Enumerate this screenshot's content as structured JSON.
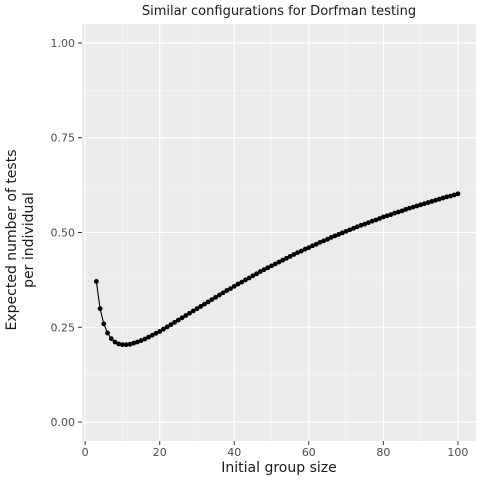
{
  "chart_data": {
    "type": "line",
    "title": "Similar configurations for Dorfman testing",
    "xlabel": "Initial group size",
    "ylabel": [
      "Expected number of tests",
      "per individual"
    ],
    "xlim": [
      -0.85,
      104.85
    ],
    "ylim": [
      -0.05,
      1.05
    ],
    "xticks": [
      0,
      20,
      40,
      60,
      80,
      100
    ],
    "yticks": [
      0.0,
      0.25,
      0.5,
      0.75,
      1.0
    ],
    "ytick_labels": [
      "0.00",
      "0.25",
      "0.50",
      "0.75",
      "1.00"
    ],
    "grid": true,
    "background": "#ebebeb",
    "grid_major_color": "#ffffff",
    "series_color": "#000000",
    "series": [
      {
        "x": [
          3,
          4,
          5,
          6,
          7,
          8,
          9,
          10,
          11,
          12,
          13,
          14,
          15,
          16,
          17,
          18,
          19,
          20,
          21,
          22,
          23,
          24,
          25,
          26,
          27,
          28,
          29,
          30,
          31,
          32,
          33,
          34,
          35,
          36,
          37,
          38,
          39,
          40,
          41,
          42,
          43,
          44,
          45,
          46,
          47,
          48,
          49,
          50,
          51,
          52,
          53,
          54,
          55,
          56,
          57,
          58,
          59,
          60,
          61,
          62,
          63,
          64,
          65,
          66,
          67,
          68,
          69,
          70,
          71,
          72,
          73,
          74,
          75,
          76,
          77,
          78,
          79,
          80,
          81,
          82,
          83,
          84,
          85,
          86,
          87,
          88,
          89,
          90,
          91,
          92,
          93,
          94,
          95,
          96,
          97,
          98,
          99,
          100
        ],
        "y": [
          0.371,
          0.299,
          0.259,
          0.235,
          0.22,
          0.211,
          0.206,
          0.204,
          0.204,
          0.205,
          0.208,
          0.211,
          0.215,
          0.219,
          0.224,
          0.229,
          0.234,
          0.239,
          0.245,
          0.251,
          0.257,
          0.263,
          0.269,
          0.275,
          0.281,
          0.287,
          0.293,
          0.299,
          0.305,
          0.311,
          0.317,
          0.323,
          0.329,
          0.335,
          0.341,
          0.347,
          0.352,
          0.358,
          0.364,
          0.369,
          0.375,
          0.38,
          0.386,
          0.391,
          0.397,
          0.402,
          0.407,
          0.412,
          0.417,
          0.422,
          0.427,
          0.432,
          0.437,
          0.442,
          0.447,
          0.451,
          0.456,
          0.46,
          0.465,
          0.469,
          0.474,
          0.478,
          0.482,
          0.487,
          0.491,
          0.495,
          0.499,
          0.503,
          0.507,
          0.511,
          0.515,
          0.519,
          0.522,
          0.526,
          0.53,
          0.533,
          0.537,
          0.541,
          0.544,
          0.547,
          0.551,
          0.554,
          0.557,
          0.561,
          0.564,
          0.567,
          0.57,
          0.573,
          0.576,
          0.579,
          0.582,
          0.585,
          0.588,
          0.591,
          0.594,
          0.596,
          0.599,
          0.602
        ]
      }
    ]
  }
}
